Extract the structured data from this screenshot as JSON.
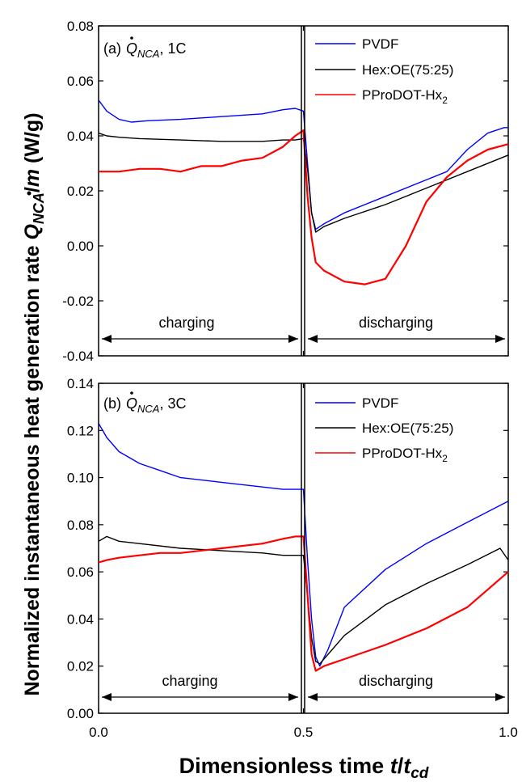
{
  "figure": {
    "ylabel_prefix": "Normalized instantaneous heat generation rate ",
    "ylabel_q": "Q",
    "ylabel_sub": "NCA",
    "ylabel_slash": "/",
    "ylabel_m": "m",
    "ylabel_unit": " (W/g)",
    "xlabel_prefix": "Dimensionless time ",
    "xlabel_t": "t",
    "xlabel_slash": "/",
    "xlabel_t2": "t",
    "xlabel_sub": "cd"
  },
  "chart_data": [
    {
      "type": "line",
      "panel_tag": "(a)",
      "q_symbol": "Q",
      "q_sub": "NCA",
      "rate": ", 1C",
      "ylim": [
        -0.04,
        0.08
      ],
      "yticks": [
        -0.04,
        -0.02,
        0.0,
        0.02,
        0.04,
        0.06,
        0.08
      ],
      "ytick_labels": [
        "-0.04",
        "-0.02",
        "0.00",
        "0.02",
        "0.04",
        "0.06",
        "0.08"
      ],
      "xlim": [
        0,
        1
      ],
      "xticks": [
        0,
        0.5,
        1
      ],
      "region_labels": [
        "charging",
        "discharging"
      ],
      "series": [
        {
          "name": "PVDF",
          "color": "#0000ff",
          "x": [
            0,
            0.02,
            0.05,
            0.08,
            0.12,
            0.2,
            0.3,
            0.4,
            0.45,
            0.48,
            0.5,
            0.51,
            0.52,
            0.53,
            0.55,
            0.6,
            0.7,
            0.8,
            0.85,
            0.9,
            0.95,
            0.99,
            1.0
          ],
          "y": [
            0.053,
            0.049,
            0.046,
            0.045,
            0.0455,
            0.046,
            0.047,
            0.048,
            0.0495,
            0.05,
            0.049,
            0.03,
            0.012,
            0.006,
            0.008,
            0.012,
            0.018,
            0.024,
            0.027,
            0.035,
            0.041,
            0.043,
            0.043
          ]
        },
        {
          "name": "Hex:OE(75:25)",
          "color": "#000000",
          "x": [
            0,
            0.02,
            0.05,
            0.1,
            0.2,
            0.3,
            0.4,
            0.45,
            0.48,
            0.5,
            0.51,
            0.52,
            0.53,
            0.55,
            0.6,
            0.7,
            0.8,
            0.9,
            1.0
          ],
          "y": [
            0.041,
            0.04,
            0.0395,
            0.039,
            0.0385,
            0.038,
            0.038,
            0.0385,
            0.0385,
            0.039,
            0.028,
            0.012,
            0.005,
            0.007,
            0.01,
            0.015,
            0.021,
            0.027,
            0.033
          ]
        },
        {
          "name": "PProDOT-Hx",
          "name_sub": "2",
          "color": "#ff0000",
          "x": [
            0,
            0.02,
            0.05,
            0.1,
            0.15,
            0.2,
            0.25,
            0.3,
            0.35,
            0.4,
            0.45,
            0.48,
            0.5,
            0.51,
            0.52,
            0.53,
            0.55,
            0.6,
            0.65,
            0.7,
            0.75,
            0.8,
            0.85,
            0.9,
            0.95,
            1.0
          ],
          "y": [
            0.027,
            0.027,
            0.027,
            0.028,
            0.028,
            0.027,
            0.029,
            0.029,
            0.031,
            0.032,
            0.036,
            0.04,
            0.042,
            0.018,
            0.003,
            -0.006,
            -0.009,
            -0.013,
            -0.014,
            -0.012,
            0.0,
            0.016,
            0.025,
            0.031,
            0.035,
            0.037
          ]
        }
      ]
    },
    {
      "type": "line",
      "panel_tag": "(b)",
      "q_symbol": "Q",
      "q_sub": "NCA",
      "rate": ", 3C",
      "ylim": [
        0.0,
        0.14
      ],
      "yticks": [
        0.0,
        0.02,
        0.04,
        0.06,
        0.08,
        0.1,
        0.12,
        0.14
      ],
      "ytick_labels": [
        "0.00",
        "0.02",
        "0.04",
        "0.06",
        "0.08",
        "0.10",
        "0.12",
        "0.14"
      ],
      "xlim": [
        0,
        1
      ],
      "xticks": [
        0,
        0.5,
        1
      ],
      "xtick_labels": [
        "0.0",
        "0.5",
        "1.0"
      ],
      "region_labels": [
        "charging",
        "discharging"
      ],
      "series": [
        {
          "name": "PVDF",
          "color": "#0000ff",
          "x": [
            0,
            0.02,
            0.05,
            0.1,
            0.15,
            0.2,
            0.3,
            0.4,
            0.45,
            0.49,
            0.5,
            0.51,
            0.52,
            0.53,
            0.54,
            0.56,
            0.6,
            0.7,
            0.8,
            0.9,
            1.0
          ],
          "y": [
            0.123,
            0.117,
            0.111,
            0.106,
            0.103,
            0.1,
            0.098,
            0.096,
            0.095,
            0.095,
            0.095,
            0.065,
            0.04,
            0.024,
            0.02,
            0.027,
            0.045,
            0.061,
            0.072,
            0.081,
            0.09
          ]
        },
        {
          "name": "Hex:OE(75:25)",
          "color": "#000000",
          "x": [
            0,
            0.02,
            0.05,
            0.1,
            0.2,
            0.3,
            0.4,
            0.45,
            0.5,
            0.51,
            0.52,
            0.53,
            0.54,
            0.55,
            0.6,
            0.7,
            0.8,
            0.9,
            0.98,
            1.0
          ],
          "y": [
            0.073,
            0.075,
            0.073,
            0.072,
            0.07,
            0.069,
            0.068,
            0.067,
            0.067,
            0.05,
            0.032,
            0.022,
            0.021,
            0.023,
            0.033,
            0.046,
            0.055,
            0.063,
            0.07,
            0.065
          ]
        },
        {
          "name": "PProDOT-Hx",
          "name_sub": "2",
          "color": "#ff0000",
          "x": [
            0,
            0.02,
            0.05,
            0.1,
            0.15,
            0.2,
            0.3,
            0.4,
            0.45,
            0.48,
            0.5,
            0.51,
            0.52,
            0.53,
            0.55,
            0.6,
            0.7,
            0.8,
            0.9,
            1.0
          ],
          "y": [
            0.064,
            0.065,
            0.066,
            0.067,
            0.068,
            0.068,
            0.07,
            0.072,
            0.074,
            0.075,
            0.075,
            0.05,
            0.025,
            0.018,
            0.02,
            0.023,
            0.029,
            0.036,
            0.045,
            0.06
          ]
        }
      ]
    }
  ]
}
